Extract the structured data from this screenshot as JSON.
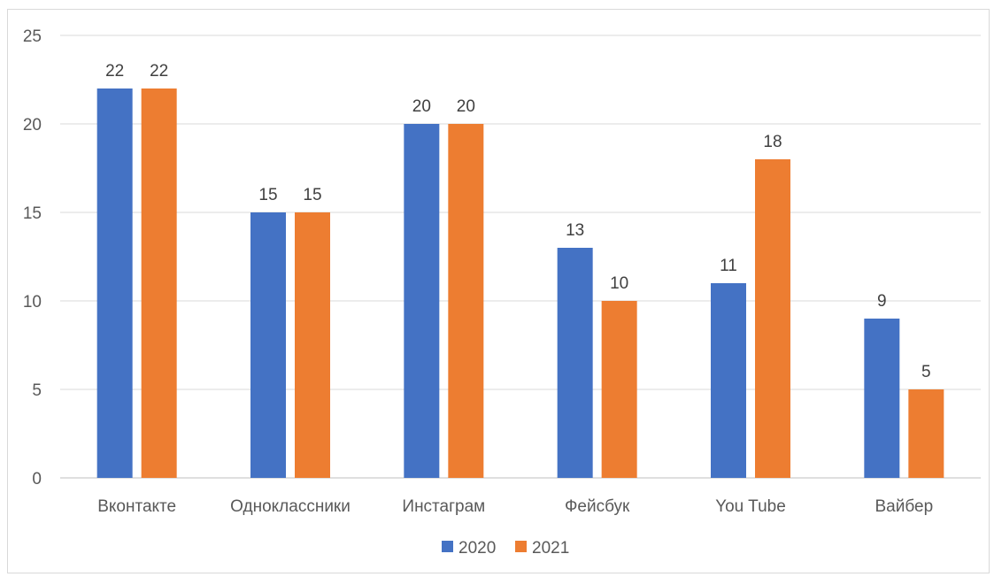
{
  "chart_data": {
    "type": "bar",
    "title": "",
    "xlabel": "",
    "ylabel": "",
    "categories": [
      "Вконтакте",
      "Одноклассники",
      "Инстаграм",
      "Фейсбук",
      "You Tube",
      "Вайбер"
    ],
    "series": [
      {
        "name": "2020",
        "color": "#4472c4",
        "values": [
          22,
          15,
          20,
          13,
          11,
          9
        ]
      },
      {
        "name": "2021",
        "color": "#ed7d31",
        "values": [
          22,
          15,
          20,
          10,
          18,
          5
        ]
      }
    ],
    "ylim": [
      0,
      25
    ],
    "yticks": [
      0,
      5,
      10,
      15,
      20,
      25
    ],
    "grid": true,
    "legend": "bottom",
    "data_labels": true
  }
}
